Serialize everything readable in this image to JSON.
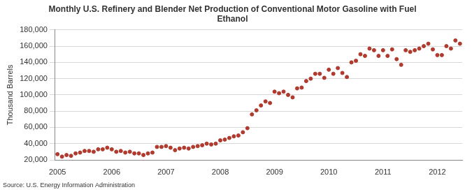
{
  "chart_data": {
    "type": "scatter",
    "title": [
      "Monthly U.S. Refinery and Blender Net Production of Conventional Motor Gasoline with Fuel",
      "Ethanol"
    ],
    "y_label": "Thousand Barrels",
    "source": "Source: U.S. Energy Information Administration",
    "categories": [
      "2005",
      null,
      null,
      null,
      null,
      null,
      null,
      null,
      null,
      null,
      null,
      null,
      "2006",
      null,
      null,
      null,
      null,
      null,
      null,
      null,
      null,
      null,
      null,
      null,
      "2007",
      null,
      null,
      null,
      null,
      null,
      null,
      null,
      null,
      null,
      null,
      null,
      "2008",
      null,
      null,
      null,
      null,
      null,
      null,
      null,
      null,
      null,
      null,
      null,
      "2009",
      null,
      null,
      null,
      null,
      null,
      null,
      null,
      null,
      null,
      null,
      null,
      "2010",
      null,
      null,
      null,
      null,
      null,
      null,
      null,
      null,
      null,
      null,
      null,
      "2011",
      null,
      null,
      null,
      null,
      null,
      null,
      null,
      null,
      null,
      null,
      null,
      "2012",
      null,
      null,
      null,
      null,
      null
    ],
    "values": [
      27000,
      24000,
      26000,
      25000,
      28000,
      29000,
      31000,
      31000,
      30000,
      33000,
      33000,
      35000,
      33000,
      30000,
      31000,
      29000,
      30000,
      28000,
      28000,
      26000,
      28000,
      29000,
      36000,
      36000,
      37000,
      35000,
      32000,
      34000,
      35000,
      34000,
      36000,
      37000,
      38000,
      40000,
      39000,
      40000,
      44000,
      45000,
      47000,
      49000,
      50000,
      54000,
      59000,
      76000,
      81000,
      87000,
      92000,
      90000,
      104000,
      102000,
      104000,
      100000,
      97000,
      108000,
      109000,
      117000,
      120000,
      126000,
      126000,
      121000,
      131000,
      126000,
      133000,
      127000,
      122000,
      140000,
      142000,
      150000,
      148000,
      157000,
      155000,
      148000,
      155000,
      148000,
      156000,
      144000,
      137000,
      155000,
      153000,
      155000,
      157000,
      160000,
      163000,
      156000,
      149000,
      149000,
      160000,
      157000,
      167000,
      163000
    ],
    "color": "#b03a2e",
    "marker": "circle",
    "ylim": [
      20000,
      180000
    ],
    "yticks": [
      {
        "value": 20000,
        "label": "20,000"
      },
      {
        "value": 40000,
        "label": "40,000"
      },
      {
        "value": 60000,
        "label": "60,000"
      },
      {
        "value": 80000,
        "label": "80,000"
      },
      {
        "value": 100000,
        "label": "100,000"
      },
      {
        "value": 120000,
        "label": "120,000"
      },
      {
        "value": 140000,
        "label": "140,000"
      },
      {
        "value": 160000,
        "label": "160,000"
      },
      {
        "value": 180000,
        "label": "180,000"
      }
    ],
    "grid": true
  }
}
